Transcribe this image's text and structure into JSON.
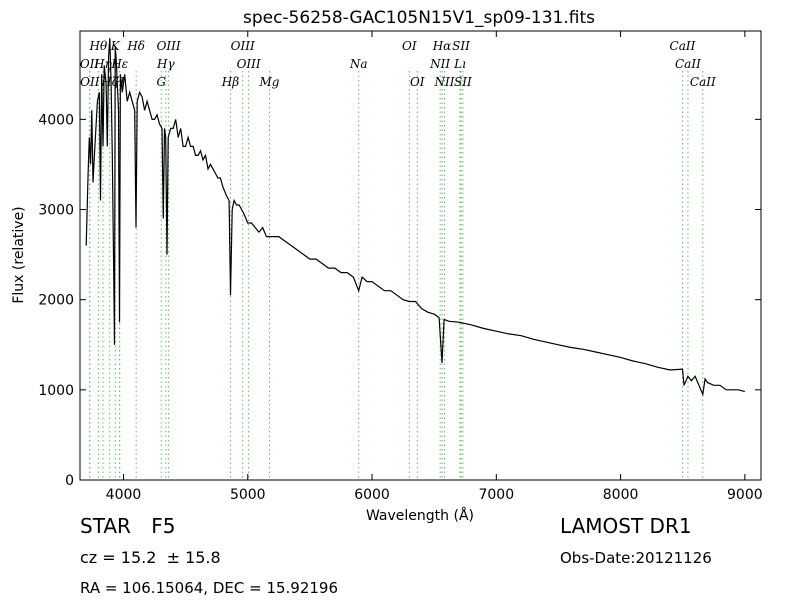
{
  "chart_data": {
    "type": "line",
    "title": "spec-56258-GAC105N15V1_sp09-131.fits",
    "xlabel": "Wavelength (Å)",
    "ylabel": "Flux (relative)",
    "xlim": [
      3650,
      9130
    ],
    "ylim": [
      0,
      4980
    ],
    "xticks": [
      4000,
      5000,
      6000,
      7000,
      8000,
      9000
    ],
    "yticks": [
      0,
      1000,
      2000,
      3000,
      4000
    ],
    "grid": false,
    "line_color": "#000000",
    "marker_color": "#66bb66",
    "spectrum": {
      "x": [
        3700,
        3715,
        3725,
        3735,
        3745,
        3755,
        3770,
        3790,
        3805,
        3815,
        3825,
        3835,
        3845,
        3860,
        3870,
        3880,
        3890,
        3900,
        3910,
        3920,
        3928,
        3933,
        3940,
        3950,
        3960,
        3968,
        3975,
        3990,
        4010,
        4030,
        4050,
        4070,
        4090,
        4101,
        4110,
        4130,
        4150,
        4170,
        4190,
        4210,
        4230,
        4250,
        4270,
        4290,
        4310,
        4320,
        4330,
        4340,
        4350,
        4360,
        4380,
        4400,
        4420,
        4440,
        4460,
        4480,
        4500,
        4520,
        4540,
        4560,
        4580,
        4600,
        4620,
        4640,
        4660,
        4680,
        4700,
        4720,
        4740,
        4760,
        4780,
        4800,
        4830,
        4850,
        4861,
        4875,
        4890,
        4910,
        4930,
        4950,
        4970,
        5000,
        5030,
        5060,
        5090,
        5120,
        5150,
        5183,
        5200,
        5250,
        5300,
        5350,
        5400,
        5450,
        5500,
        5550,
        5600,
        5650,
        5700,
        5750,
        5800,
        5850,
        5893,
        5920,
        5960,
        6000,
        6050,
        6100,
        6150,
        6200,
        6250,
        6300,
        6350,
        6400,
        6450,
        6500,
        6540,
        6563,
        6580,
        6620,
        6700,
        6800,
        6900,
        7000,
        7100,
        7200,
        7300,
        7400,
        7500,
        7600,
        7700,
        7800,
        7900,
        8000,
        8100,
        8200,
        8300,
        8400,
        8498,
        8510,
        8542,
        8570,
        8600,
        8662,
        8680,
        8700,
        8750,
        8800,
        8850,
        8900,
        8950,
        9000
      ],
      "y": [
        2600,
        3400,
        3800,
        3500,
        4100,
        3300,
        3700,
        4200,
        4300,
        3100,
        4500,
        3700,
        4600,
        4400,
        3700,
        4700,
        4900,
        4400,
        3600,
        2400,
        1500,
        4800,
        4700,
        4400,
        4100,
        1750,
        4500,
        4300,
        4500,
        4200,
        4300,
        4200,
        4100,
        2800,
        4200,
        4300,
        4250,
        4100,
        4200,
        4100,
        4000,
        4000,
        4050,
        3950,
        3900,
        2900,
        3900,
        3800,
        2500,
        3800,
        3900,
        3900,
        4000,
        3800,
        3900,
        3700,
        3700,
        3800,
        3700,
        3700,
        3600,
        3600,
        3650,
        3550,
        3600,
        3450,
        3500,
        3450,
        3400,
        3350,
        3350,
        3250,
        3150,
        3100,
        2050,
        3000,
        3100,
        3050,
        3050,
        3000,
        2950,
        2850,
        2850,
        2800,
        2750,
        2800,
        2700,
        2700,
        2700,
        2700,
        2650,
        2600,
        2550,
        2500,
        2450,
        2450,
        2400,
        2350,
        2350,
        2300,
        2300,
        2250,
        2100,
        2250,
        2200,
        2200,
        2150,
        2100,
        2100,
        2050,
        2000,
        1980,
        1980,
        1900,
        1860,
        1840,
        1800,
        1300,
        1780,
        1760,
        1750,
        1720,
        1680,
        1650,
        1620,
        1600,
        1560,
        1530,
        1500,
        1470,
        1450,
        1420,
        1390,
        1360,
        1320,
        1290,
        1250,
        1220,
        1230,
        1050,
        1150,
        1100,
        1150,
        950,
        1120,
        1080,
        1050,
        1050,
        1000,
        1000,
        1000,
        980
      ]
    },
    "line_markers": [
      {
        "name": "OII",
        "wave": 3727,
        "row": 1
      },
      {
        "name": "OII",
        "wave": 3729,
        "row": 2
      },
      {
        "name": "Hθ",
        "wave": 3798,
        "row": 0
      },
      {
        "name": "Hη",
        "wave": 3835,
        "row": 1
      },
      {
        "name": "K",
        "wave": 3934,
        "row": 0
      },
      {
        "name": "Hζ",
        "wave": 3889,
        "row": 2
      },
      {
        "name": "H",
        "wave": 3968,
        "row": 2
      },
      {
        "name": "Hε",
        "wave": 3970,
        "row": 1
      },
      {
        "name": "Hδ",
        "wave": 4102,
        "row": 0
      },
      {
        "name": "OIII",
        "wave": 4363,
        "row": 0
      },
      {
        "name": "Hγ",
        "wave": 4341,
        "row": 1
      },
      {
        "name": "G",
        "wave": 4304,
        "row": 2
      },
      {
        "name": "OIII",
        "wave": 4959,
        "row": 0
      },
      {
        "name": "OIII",
        "wave": 5007,
        "row": 1
      },
      {
        "name": "Hβ",
        "wave": 4861,
        "row": 2
      },
      {
        "name": "Mg",
        "wave": 5175,
        "row": 2
      },
      {
        "name": "Na",
        "wave": 5893,
        "row": 1
      },
      {
        "name": "OI",
        "wave": 6300,
        "row": 0
      },
      {
        "name": "OI",
        "wave": 6364,
        "row": 2
      },
      {
        "name": "Hα",
        "wave": 6563,
        "row": 0
      },
      {
        "name": "SII",
        "wave": 6716,
        "row": 0
      },
      {
        "name": "NII",
        "wave": 6548,
        "row": 1
      },
      {
        "name": "Lı",
        "wave": 6708,
        "row": 1
      },
      {
        "name": "NII",
        "wave": 6583,
        "row": 2
      },
      {
        "name": "SII",
        "wave": 6731,
        "row": 2
      },
      {
        "name": "CaII",
        "wave": 8498,
        "row": 0
      },
      {
        "name": "CaII",
        "wave": 8542,
        "row": 1
      },
      {
        "name": "CaII",
        "wave": 8662,
        "row": 2
      }
    ]
  },
  "info": {
    "class_label": "STAR",
    "subclass": "F5",
    "survey": "LAMOST DR1",
    "redshift": "cz = 15.2  ± 15.8",
    "obs_date": "Obs-Date:20121126",
    "coords": "RA = 106.15064, DEC = 15.92196"
  }
}
